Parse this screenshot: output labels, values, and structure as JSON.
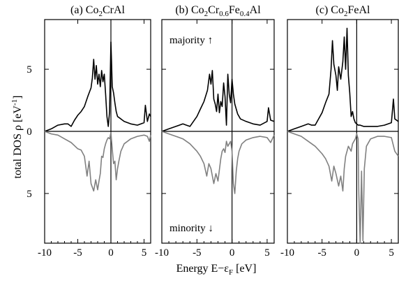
{
  "figure": {
    "shared_xlabel": {
      "main": "Energy  E−ε",
      "sub": "F",
      "unit": " [eV]"
    },
    "shared_ylabel": {
      "main": "total DOS  ρ [eV",
      "sup": "-1",
      "close": "]"
    },
    "annotations": {
      "majority": "majority ↑",
      "minority": "minority ↓"
    },
    "colors": {
      "majority": "#000000",
      "minority": "#808080"
    }
  },
  "chart_data": [
    {
      "type": "line",
      "title": "(a)  Co2CrAl",
      "title_parts": [
        {
          "t": "(a)  Co"
        },
        {
          "t": "2",
          "sub": true
        },
        {
          "t": "CrAl"
        }
      ],
      "xlim": [
        -10,
        6
      ],
      "ylim": [
        -9,
        9
      ],
      "xticks": [
        "-10",
        "-5",
        "0",
        "5"
      ],
      "yticks_left": [
        "5",
        "0",
        "5"
      ],
      "series": [
        {
          "values_x": [
            -10,
            -9,
            -8,
            -7,
            -6.5,
            -6,
            -5.5,
            -5,
            -4.5,
            -4,
            -3.5,
            -3,
            -2.8,
            -2.6,
            -2.4,
            -2.2,
            -2,
            -1.8,
            -1.6,
            -1.4,
            -1.2,
            -1,
            -0.8,
            -0.6,
            -0.4,
            -0.2,
            0,
            0.1,
            0.2,
            0.4,
            0.6,
            0.8,
            1,
            1.5,
            2,
            3,
            4,
            5,
            5.2,
            5.5,
            5.8,
            6
          ],
          "values_y": [
            0,
            0.2,
            0.5,
            0.6,
            0.6,
            0.4,
            0.9,
            1.3,
            1.6,
            2,
            2.8,
            3.5,
            4.3,
            5.8,
            4.2,
            5.3,
            3.8,
            4.6,
            3.6,
            4.9,
            4.0,
            4.6,
            3.0,
            1.2,
            0.4,
            1.6,
            7.2,
            5.6,
            3.6,
            3.1,
            2.3,
            1.6,
            1.2,
            1.0,
            0.8,
            0.6,
            0.5,
            0.7,
            2.1,
            0.8,
            1.4,
            1.2
          ]
        },
        {
          "values_x": [
            -10,
            -9,
            -8,
            -7,
            -6,
            -5,
            -4.5,
            -4,
            -3.6,
            -3.3,
            -3,
            -2.6,
            -2.3,
            -2,
            -1.8,
            -1.6,
            -1.4,
            -1.2,
            -1,
            -0.8,
            -0.6,
            -0.4,
            -0.2,
            0,
            0.2,
            0.4,
            0.6,
            0.8,
            1,
            1.2,
            1.5,
            2,
            3,
            4,
            5,
            5.5,
            5.8,
            6
          ],
          "values_y": [
            0,
            -0.2,
            -0.3,
            -0.6,
            -0.9,
            -1.4,
            -1.5,
            -2.0,
            -3.6,
            -2.4,
            -4.2,
            -4.8,
            -3.9,
            -4.7,
            -4.0,
            -3.4,
            -2.0,
            -2.1,
            -1.4,
            -1.0,
            -0.7,
            -0.5,
            -0.6,
            -0.1,
            -1.4,
            -2.6,
            -2.4,
            -3.9,
            -3.0,
            -2.4,
            -1.6,
            -1.0,
            -0.6,
            -0.4,
            -0.3,
            -0.4,
            -0.8,
            -0.3
          ]
        }
      ]
    },
    {
      "type": "line",
      "title": "(b)  Co2Cr0.6Fe0.4Al",
      "title_parts": [
        {
          "t": "(b)  Co"
        },
        {
          "t": "2",
          "sub": true
        },
        {
          "t": "Cr"
        },
        {
          "t": "0.6",
          "sub": true
        },
        {
          "t": "Fe"
        },
        {
          "t": "0.4",
          "sub": true
        },
        {
          "t": "Al"
        }
      ],
      "xlim": [
        -10,
        6
      ],
      "ylim": [
        -9,
        9
      ],
      "xticks": [
        "-10",
        "-5",
        "0",
        "5"
      ],
      "series": [
        {
          "values_x": [
            -10,
            -9,
            -8,
            -7,
            -6.5,
            -6,
            -5.5,
            -5,
            -4.5,
            -4,
            -3.5,
            -3.2,
            -3,
            -2.8,
            -2.6,
            -2.4,
            -2.2,
            -2,
            -1.8,
            -1.6,
            -1.4,
            -1.2,
            -1,
            -0.8,
            -0.6,
            -0.4,
            -0.2,
            0,
            0.2,
            0.4,
            0.8,
            1.2,
            2,
            3,
            4,
            5,
            5.2,
            5.5,
            6
          ],
          "values_y": [
            0,
            0.2,
            0.4,
            0.6,
            0.5,
            0.4,
            0.8,
            1.2,
            1.8,
            2.4,
            3.3,
            4.6,
            3.8,
            4.9,
            2.6,
            2.2,
            1.6,
            3.0,
            1.5,
            2.4,
            2.0,
            3.9,
            2.8,
            0.5,
            4.6,
            3.0,
            2.3,
            4.2,
            3.0,
            2.2,
            1.4,
            1.0,
            0.8,
            0.6,
            0.5,
            0.8,
            1.9,
            0.9,
            0.8
          ]
        },
        {
          "values_x": [
            -10,
            -9,
            -8,
            -7,
            -6,
            -5,
            -4.5,
            -4,
            -3.6,
            -3.3,
            -3,
            -2.6,
            -2.3,
            -2,
            -1.8,
            -1.6,
            -1.4,
            -1.2,
            -1,
            -0.8,
            -0.6,
            -0.4,
            -0.2,
            0,
            0.2,
            0.4,
            0.6,
            0.8,
            1,
            1.4,
            2,
            3,
            4,
            5,
            5.5,
            6
          ],
          "values_y": [
            0,
            -0.2,
            -0.4,
            -0.6,
            -1.0,
            -1.6,
            -2.0,
            -2.6,
            -3.6,
            -2.6,
            -3.0,
            -4.2,
            -3.4,
            -4.0,
            -3.1,
            -2.2,
            -1.6,
            -1.4,
            -1.7,
            -0.8,
            -1.2,
            -1.0,
            -0.8,
            -1.6,
            -4.2,
            -5.0,
            -3.2,
            -2.2,
            -1.6,
            -1.0,
            -0.7,
            -0.5,
            -0.4,
            -0.5,
            -0.9,
            -0.3
          ]
        }
      ]
    },
    {
      "type": "line",
      "title": "(c)  Co2FeAl",
      "title_parts": [
        {
          "t": "(c)  Co"
        },
        {
          "t": "2",
          "sub": true
        },
        {
          "t": "FeAl"
        }
      ],
      "xlim": [
        -10,
        6
      ],
      "ylim": [
        -9,
        9
      ],
      "xticks": [
        "-10",
        "-5",
        "0",
        "5"
      ],
      "series": [
        {
          "values_x": [
            -10,
            -9,
            -8,
            -7,
            -6.5,
            -6,
            -5.5,
            -5,
            -4.5,
            -4,
            -3.7,
            -3.5,
            -3.3,
            -3,
            -2.8,
            -2.6,
            -2.3,
            -2,
            -1.8,
            -1.6,
            -1.4,
            -1.2,
            -1,
            -0.8,
            -0.6,
            -0.4,
            -0.2,
            0,
            0.2,
            0.5,
            1,
            2,
            3,
            4,
            5,
            5.3,
            5.5,
            6
          ],
          "values_y": [
            0,
            0.2,
            0.4,
            0.6,
            0.5,
            0.5,
            1.0,
            1.5,
            2.3,
            3.0,
            5.0,
            7.3,
            5.4,
            4.5,
            3.3,
            5.2,
            4.2,
            5.6,
            7.6,
            5.0,
            8.3,
            4.5,
            3.1,
            1.2,
            1.6,
            1.0,
            0.7,
            0.6,
            0.5,
            0.5,
            0.4,
            0.4,
            0.4,
            0.5,
            0.7,
            2.6,
            1.0,
            0.8
          ]
        },
        {
          "values_x": [
            -10,
            -9,
            -8,
            -7,
            -6,
            -5,
            -4.5,
            -4,
            -3.6,
            -3.3,
            -3,
            -2.6,
            -2.3,
            -2,
            -1.8,
            -1.6,
            -1.4,
            -1.2,
            -1,
            -0.8,
            -0.6,
            -0.4,
            -0.2,
            0,
            0.2,
            0.3,
            0.5,
            0.7,
            0.9,
            1.1,
            1.4,
            2,
            3,
            4,
            5,
            5.5,
            6
          ],
          "values_y": [
            0,
            -0.2,
            -0.4,
            -0.8,
            -1.2,
            -1.8,
            -2.2,
            -2.8,
            -4.0,
            -2.8,
            -3.4,
            -4.4,
            -3.6,
            -4.8,
            -3.0,
            -2.0,
            -1.6,
            -1.2,
            -1.4,
            -1.6,
            -1.0,
            -0.8,
            -0.6,
            -0.2,
            -0.6,
            -5.0,
            -9.0,
            -3.2,
            -8.8,
            -3.0,
            -1.2,
            -0.6,
            -0.4,
            -0.4,
            -0.5,
            -1.6,
            -2.0
          ]
        }
      ]
    }
  ]
}
